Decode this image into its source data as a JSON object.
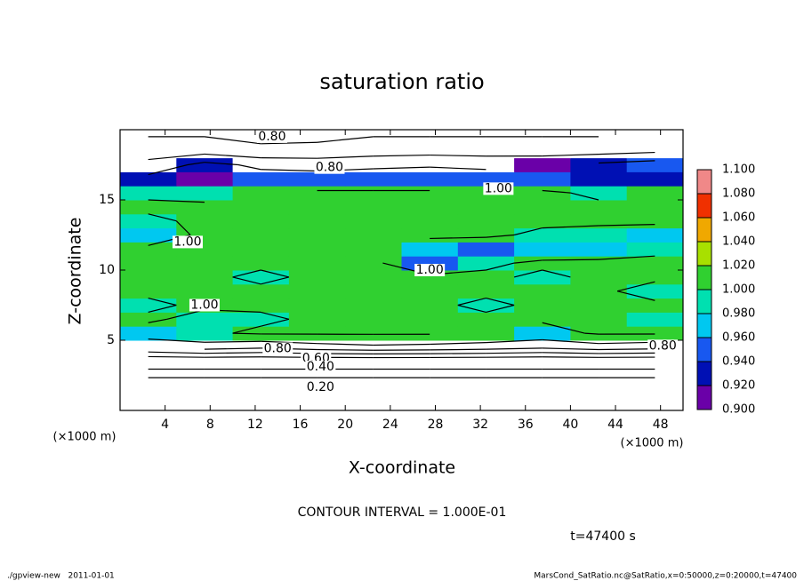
{
  "chart_data": {
    "type": "heatmap",
    "title": "saturation ratio",
    "x_label": "X-coordinate",
    "y_label": "Z-coordinate",
    "x_unit": "(×1000 m)",
    "y_unit": "(×1000 m)",
    "xlim": [
      0,
      50
    ],
    "ylim": [
      0,
      20
    ],
    "xticks": [
      4,
      8,
      12,
      16,
      20,
      24,
      28,
      32,
      36,
      40,
      44,
      48
    ],
    "yticks": [
      5,
      10,
      15
    ],
    "x": [
      2.5,
      7.5,
      12.5,
      17.5,
      22.5,
      27.5,
      32.5,
      37.5,
      42.5,
      47.5
    ],
    "y": [
      0.5,
      1.5,
      2.5,
      3.5,
      4.5,
      5.5,
      6.5,
      7.5,
      8.5,
      9.5,
      10.5,
      11.5,
      12.5,
      13.5,
      14.5,
      15.5,
      16.5,
      17.5,
      18.5,
      19.5
    ],
    "z": [
      [
        0.1,
        0.1,
        0.1,
        0.1,
        0.1,
        0.1,
        0.1,
        0.1,
        0.1,
        0.1
      ],
      [
        0.2,
        0.2,
        0.2,
        0.2,
        0.2,
        0.2,
        0.2,
        0.2,
        0.2,
        0.2
      ],
      [
        0.32,
        0.32,
        0.32,
        0.32,
        0.32,
        0.32,
        0.32,
        0.32,
        0.32,
        0.32
      ],
      [
        0.5,
        0.5,
        0.5,
        0.5,
        0.5,
        0.5,
        0.5,
        0.5,
        0.5,
        0.5
      ],
      [
        0.8,
        0.85,
        0.82,
        0.86,
        0.88,
        0.87,
        0.85,
        0.82,
        0.86,
        0.84
      ],
      [
        0.97,
        0.99,
        1.01,
        1.01,
        1.01,
        1.01,
        1.0,
        0.97,
        1.01,
        1.01
      ],
      [
        1.01,
        0.98,
        0.99,
        1.01,
        1.01,
        1.01,
        1.01,
        1.01,
        1.0,
        0.99
      ],
      [
        0.99,
        1.01,
        1.01,
        1.01,
        1.01,
        1.01,
        0.99,
        1.01,
        1.01,
        1.01
      ],
      [
        1.01,
        1.01,
        1.01,
        1.01,
        1.01,
        1.01,
        1.01,
        1.0,
        1.01,
        0.98
      ],
      [
        1.01,
        1.01,
        0.99,
        1.01,
        1.01,
        1.01,
        1.01,
        0.99,
        1.01,
        1.01
      ],
      [
        1.01,
        1.01,
        1.01,
        1.01,
        1.01,
        0.95,
        0.99,
        1.01,
        1.01,
        1.01
      ],
      [
        1.01,
        1.01,
        1.01,
        1.01,
        1.0,
        0.97,
        0.95,
        0.96,
        0.97,
        0.99
      ],
      [
        0.97,
        1.01,
        1.01,
        1.01,
        1.01,
        1.01,
        1.01,
        0.99,
        0.98,
        0.97
      ],
      [
        0.99,
        1.01,
        1.01,
        1.01,
        1.01,
        1.01,
        1.01,
        1.01,
        1.01,
        1.01
      ],
      [
        1.01,
        1.01,
        1.01,
        1.01,
        1.01,
        1.01,
        1.01,
        1.0,
        1.01,
        1.01
      ],
      [
        0.99,
        0.98,
        1.0,
        1.01,
        1.01,
        1.01,
        1.0,
        1.01,
        0.99,
        1.0
      ],
      [
        0.93,
        0.91,
        0.94,
        0.95,
        0.95,
        0.95,
        0.94,
        0.95,
        0.93,
        0.92
      ],
      [
        0.83,
        0.93,
        0.88,
        0.86,
        0.88,
        0.89,
        0.88,
        0.9,
        0.92,
        0.95
      ],
      [
        0.75,
        0.76,
        0.72,
        0.73,
        0.75,
        0.76,
        0.75,
        0.74,
        0.76,
        0.78
      ],
      [
        0.7,
        0.7,
        0.68,
        0.68,
        0.7,
        0.7,
        0.7,
        0.7,
        0.7,
        0.72
      ]
    ],
    "levels": [
      {
        "value": 0.9,
        "label": "0.900"
      },
      {
        "value": 0.92,
        "label": "0.920"
      },
      {
        "value": 0.94,
        "label": "0.940"
      },
      {
        "value": 0.96,
        "label": "0.960"
      },
      {
        "value": 0.98,
        "label": "0.980"
      },
      {
        "value": 1.0,
        "label": "1.000"
      },
      {
        "value": 1.02,
        "label": "1.020"
      },
      {
        "value": 1.04,
        "label": "1.040"
      },
      {
        "value": 1.06,
        "label": "1.060"
      },
      {
        "value": 1.08,
        "label": "1.080"
      },
      {
        "value": 1.1,
        "label": "1.100"
      }
    ],
    "colors": [
      "#6a00a8",
      "#0010b4",
      "#1858f0",
      "#00c8f0",
      "#00e0b0",
      "#30d030",
      "#a8e000",
      "#f0a800",
      "#f03000",
      "#f08888"
    ],
    "contour_interval": 0.1,
    "contour_labels": [
      {
        "label": "0.80",
        "x": 13.5,
        "y": 19.5
      },
      {
        "label": "0.80",
        "x": 18.6,
        "y": 17.3
      },
      {
        "label": "1.00",
        "x": 33.6,
        "y": 15.8
      },
      {
        "label": "1.00",
        "x": 6,
        "y": 12
      },
      {
        "label": "1.00",
        "x": 27.5,
        "y": 10
      },
      {
        "label": "1.00",
        "x": 7.5,
        "y": 7.5
      },
      {
        "label": "0.80",
        "x": 14,
        "y": 4.4
      },
      {
        "label": "0.60",
        "x": 17.4,
        "y": 3.7
      },
      {
        "label": "0.40",
        "x": 17.8,
        "y": 3.1
      },
      {
        "label": "0.20",
        "x": 17.8,
        "y": 1.65
      },
      {
        "label": "0.80",
        "x": 48.2,
        "y": 4.6
      }
    ],
    "contour_note": "CONTOUR INTERVAL = 1.000E-01",
    "time_label": "t=47400 s",
    "footer_left": "./gpview-new   2011-01-01",
    "footer_right": "MarsCond_SatRatio.nc@SatRatio,x=0:50000,z=0:20000,t=47400"
  }
}
